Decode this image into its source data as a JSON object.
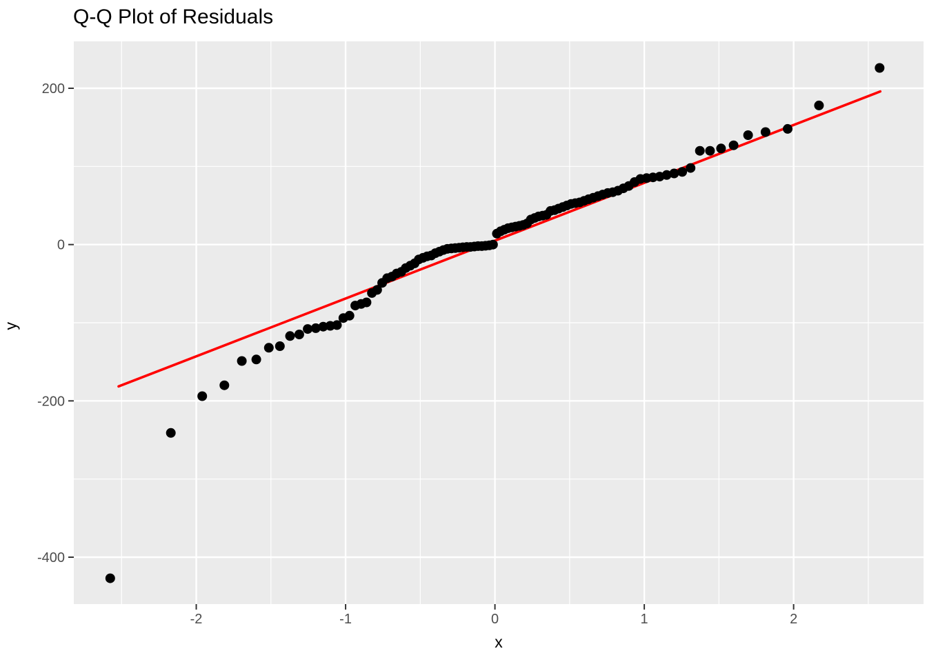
{
  "figure": {
    "title": "Q-Q Plot of Residuals"
  },
  "chart_data": {
    "type": "scatter",
    "title": "Q-Q Plot of Residuals",
    "xlabel": "x",
    "ylabel": "y",
    "x_ticks": [
      -2,
      -1,
      0,
      1,
      2
    ],
    "x_minor_ticks": [
      -2.5,
      -1.5,
      -0.5,
      0.5,
      1.5,
      2.5
    ],
    "y_ticks": [
      -400,
      -200,
      0,
      200
    ],
    "y_minor_ticks": [
      -300,
      -100,
      100
    ],
    "xlim": [
      -2.82,
      2.87
    ],
    "ylim": [
      -460,
      260
    ],
    "grid": "major and minor, white on grey panel",
    "legend_position": "none",
    "colors": {
      "panel_background": "#EBEBEB",
      "grid": "#FFFFFF",
      "points": "#000000",
      "reference_line": "#FF0000",
      "tick_labels": "#4D4D4D",
      "tick_marks": "#333333"
    },
    "point_radius_px": 7,
    "reference_line": {
      "name": "qq-line",
      "slope": 74,
      "intercept": 5,
      "x_start": -2.52,
      "x_end": 2.58,
      "color": "#FF0000"
    },
    "series": [
      {
        "name": "sample-quantiles",
        "x": [
          -2.576,
          -2.17,
          -1.96,
          -1.812,
          -1.695,
          -1.598,
          -1.514,
          -1.44,
          -1.372,
          -1.31,
          -1.254,
          -1.2,
          -1.15,
          -1.103,
          -1.058,
          -1.015,
          -0.974,
          -0.935,
          -0.896,
          -0.86,
          -0.824,
          -0.789,
          -0.755,
          -0.722,
          -0.69,
          -0.658,
          -0.627,
          -0.597,
          -0.567,
          -0.538,
          -0.51,
          -0.482,
          -0.454,
          -0.426,
          -0.399,
          -0.372,
          -0.345,
          -0.319,
          -0.292,
          -0.266,
          -0.24,
          -0.215,
          -0.189,
          -0.164,
          -0.138,
          -0.113,
          -0.088,
          -0.063,
          -0.038,
          -0.013,
          0.013,
          0.038,
          0.063,
          0.088,
          0.113,
          0.138,
          0.164,
          0.189,
          0.215,
          0.24,
          0.266,
          0.292,
          0.319,
          0.345,
          0.372,
          0.399,
          0.426,
          0.454,
          0.482,
          0.51,
          0.538,
          0.567,
          0.597,
          0.627,
          0.658,
          0.69,
          0.722,
          0.755,
          0.789,
          0.824,
          0.86,
          0.896,
          0.935,
          0.974,
          1.015,
          1.058,
          1.103,
          1.15,
          1.2,
          1.254,
          1.31,
          1.372,
          1.44,
          1.514,
          1.598,
          1.695,
          1.812,
          1.96,
          2.17,
          2.576
        ],
        "y": [
          -427,
          -241,
          -194,
          -180,
          -149,
          -147,
          -132,
          -130,
          -117,
          -115,
          -108,
          -107,
          -105,
          -104,
          -103,
          -94,
          -91,
          -78,
          -76,
          -74,
          -62,
          -58,
          -49,
          -43,
          -41,
          -37,
          -35,
          -30,
          -27,
          -24,
          -19,
          -17,
          -15,
          -14,
          -11,
          -9,
          -7,
          -5.5,
          -5,
          -4.5,
          -4,
          -3.5,
          -3,
          -3,
          -2.5,
          -2,
          -2,
          -1.5,
          -1,
          0,
          14,
          17,
          19,
          21,
          22,
          23,
          24,
          25,
          27,
          32,
          34,
          36,
          37,
          38,
          43,
          44,
          46,
          48,
          50,
          52,
          53,
          54,
          56,
          58,
          60,
          62,
          64,
          66,
          67,
          69,
          72,
          75,
          80,
          84,
          85,
          86,
          87,
          89,
          91,
          93,
          98,
          120,
          120,
          123,
          127,
          140,
          144,
          148,
          178,
          226
        ]
      }
    ]
  }
}
